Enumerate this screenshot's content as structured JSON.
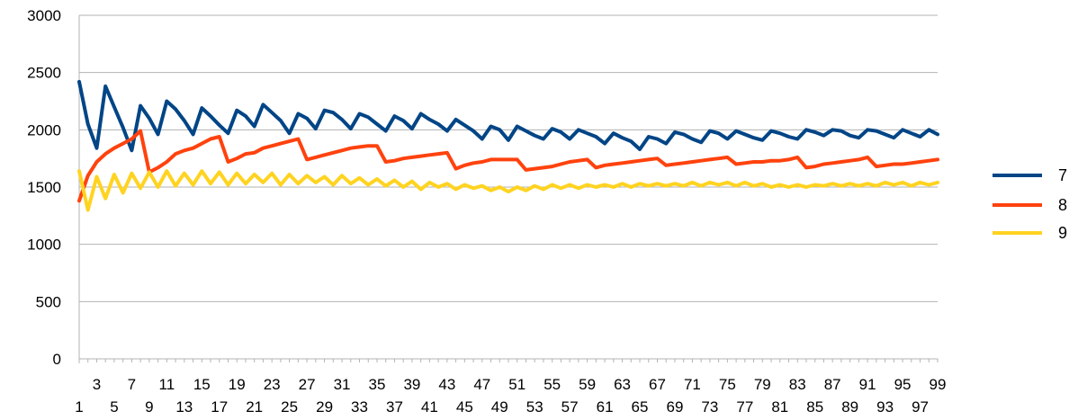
{
  "chart_data": {
    "type": "line",
    "title": "",
    "xlabel": "",
    "ylabel": "",
    "x_start": 1,
    "x_end": 99,
    "ylim": [
      0,
      3000
    ],
    "yticks": [
      0,
      500,
      1000,
      1500,
      2000,
      2500,
      3000
    ],
    "grid": "horizontal",
    "legend": "right",
    "series": [
      {
        "name": "7",
        "color": "#004586",
        "values": [
          2420,
          2050,
          1840,
          2380,
          2200,
          2020,
          1820,
          2210,
          2100,
          1960,
          2250,
          2180,
          2080,
          1960,
          2190,
          2120,
          2040,
          1970,
          2170,
          2120,
          2030,
          2220,
          2150,
          2080,
          1970,
          2140,
          2100,
          2010,
          2170,
          2150,
          2090,
          2010,
          2140,
          2110,
          2050,
          1990,
          2120,
          2080,
          2010,
          2140,
          2090,
          2050,
          1990,
          2090,
          2040,
          1990,
          1920,
          2030,
          2000,
          1910,
          2030,
          1990,
          1950,
          1920,
          2010,
          1980,
          1920,
          2000,
          1970,
          1940,
          1880,
          1970,
          1930,
          1900,
          1830,
          1940,
          1920,
          1880,
          1980,
          1960,
          1920,
          1890,
          1990,
          1970,
          1920,
          1990,
          1960,
          1930,
          1910,
          1990,
          1970,
          1940,
          1920,
          2000,
          1980,
          1950,
          2000,
          1990,
          1950,
          1930,
          2000,
          1990,
          1960,
          1930,
          2000,
          1970,
          1940,
          2000,
          1960
        ]
      },
      {
        "name": "8",
        "color": "#ff420e",
        "values": [
          1380,
          1600,
          1720,
          1790,
          1840,
          1880,
          1920,
          1990,
          1630,
          1670,
          1720,
          1790,
          1820,
          1840,
          1880,
          1920,
          1940,
          1720,
          1750,
          1790,
          1800,
          1840,
          1860,
          1880,
          1900,
          1920,
          1740,
          1760,
          1780,
          1800,
          1820,
          1840,
          1850,
          1860,
          1860,
          1720,
          1730,
          1750,
          1760,
          1770,
          1780,
          1790,
          1800,
          1660,
          1690,
          1710,
          1720,
          1740,
          1740,
          1740,
          1740,
          1650,
          1660,
          1670,
          1680,
          1700,
          1720,
          1730,
          1740,
          1670,
          1690,
          1700,
          1710,
          1720,
          1730,
          1740,
          1750,
          1690,
          1700,
          1710,
          1720,
          1730,
          1740,
          1750,
          1760,
          1700,
          1710,
          1720,
          1720,
          1730,
          1730,
          1740,
          1760,
          1670,
          1680,
          1700,
          1710,
          1720,
          1730,
          1740,
          1760,
          1680,
          1690,
          1700,
          1700,
          1710,
          1720,
          1730,
          1740
        ]
      },
      {
        "name": "9",
        "color": "#ffd320",
        "values": [
          1640,
          1300,
          1590,
          1400,
          1610,
          1450,
          1620,
          1490,
          1630,
          1500,
          1640,
          1510,
          1620,
          1520,
          1640,
          1530,
          1630,
          1520,
          1620,
          1530,
          1610,
          1540,
          1620,
          1520,
          1610,
          1530,
          1600,
          1540,
          1590,
          1520,
          1600,
          1530,
          1580,
          1520,
          1570,
          1510,
          1560,
          1500,
          1550,
          1480,
          1540,
          1500,
          1530,
          1480,
          1520,
          1490,
          1510,
          1470,
          1500,
          1460,
          1500,
          1470,
          1510,
          1480,
          1520,
          1490,
          1520,
          1490,
          1520,
          1500,
          1520,
          1500,
          1530,
          1500,
          1530,
          1510,
          1530,
          1510,
          1530,
          1510,
          1540,
          1510,
          1540,
          1520,
          1540,
          1510,
          1540,
          1510,
          1530,
          1500,
          1520,
          1500,
          1520,
          1500,
          1520,
          1510,
          1530,
          1510,
          1530,
          1510,
          1530,
          1510,
          1540,
          1520,
          1540,
          1510,
          1540,
          1520,
          1540
        ]
      }
    ]
  }
}
